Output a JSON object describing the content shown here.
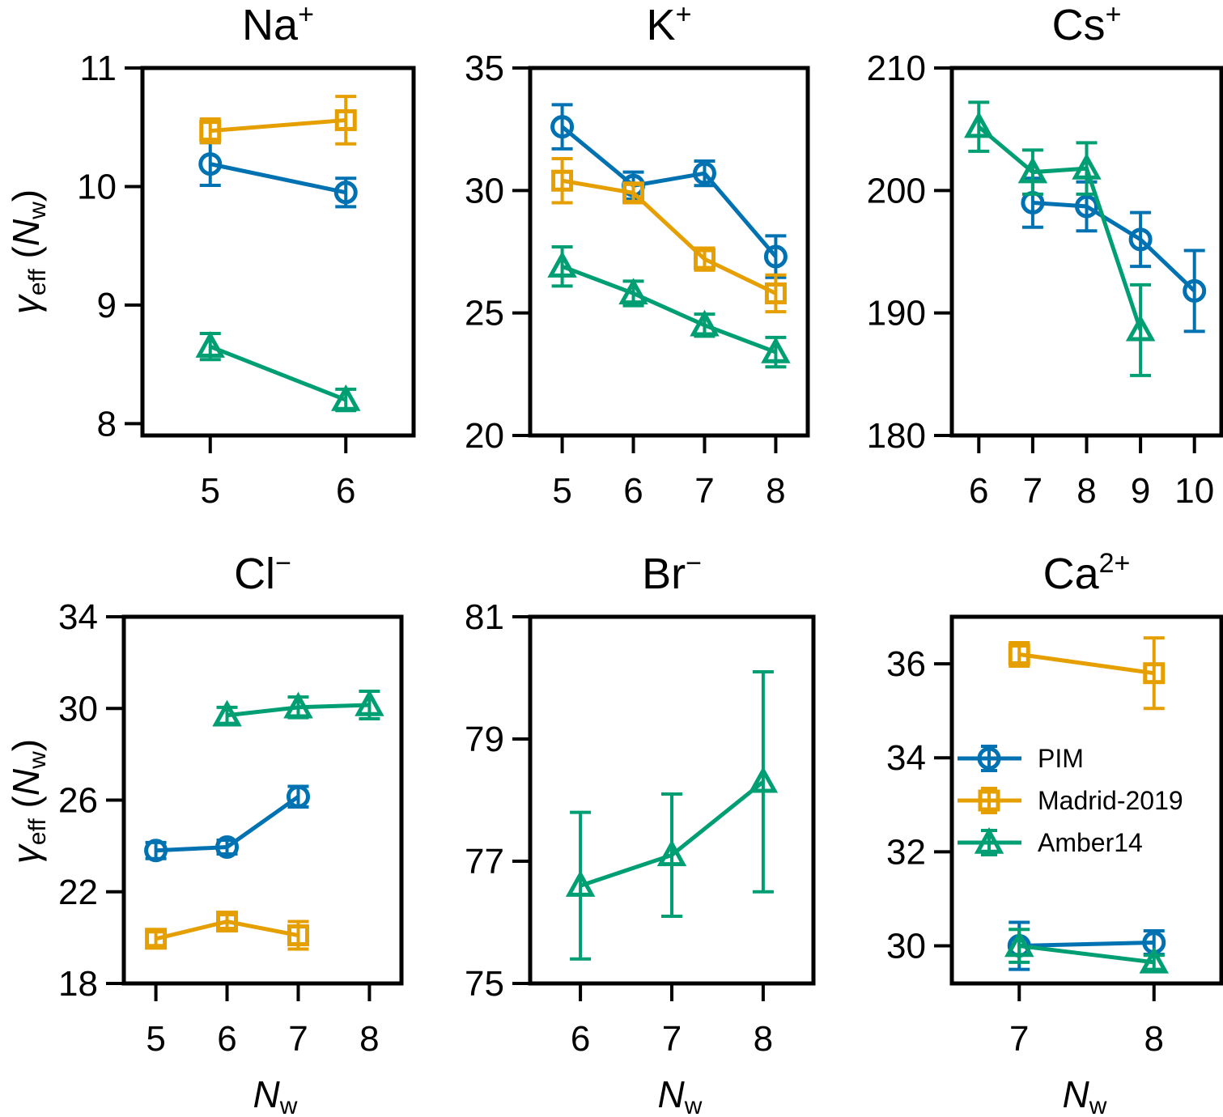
{
  "figure": {
    "y_label": {
      "symbol": "γ",
      "sub": "eff",
      "open": " (",
      "var": "N",
      "var_sub": "w",
      "close": ")"
    },
    "x_label": {
      "var": "N",
      "var_sub": "w"
    }
  },
  "legend": [
    {
      "name": "PIM",
      "marker": "circle",
      "color": "#0072B2"
    },
    {
      "name": "Madrid-2019",
      "marker": "square",
      "color": "#E69F00"
    },
    {
      "name": "Amber14",
      "marker": "triangle",
      "color": "#009E73"
    }
  ],
  "chart_data": [
    {
      "type": "line",
      "title": {
        "base": "Na",
        "sup": "+"
      },
      "xlabel": "",
      "ylabel": "γeff (Nw)",
      "xlim": [
        4.5,
        6.5
      ],
      "ylim": [
        7.9,
        11
      ],
      "xticks": [
        5,
        6
      ],
      "yticks": [
        8,
        9,
        10,
        11
      ],
      "series": [
        {
          "name": "PIM",
          "marker": "circle",
          "color": "#0072B2",
          "points": [
            {
              "x": 5,
              "y": 10.19,
              "err": 0.18
            },
            {
              "x": 6,
              "y": 9.95,
              "err": 0.12
            }
          ]
        },
        {
          "name": "Madrid-2019",
          "marker": "square",
          "color": "#E69F00",
          "points": [
            {
              "x": 5,
              "y": 10.47,
              "err": 0.1
            },
            {
              "x": 6,
              "y": 10.56,
              "err": 0.2
            }
          ]
        },
        {
          "name": "Amber14",
          "marker": "triangle",
          "color": "#009E73",
          "points": [
            {
              "x": 5,
              "y": 8.65,
              "err": 0.11
            },
            {
              "x": 6,
              "y": 8.2,
              "err": 0.09
            }
          ]
        }
      ]
    },
    {
      "type": "line",
      "title": {
        "base": "K",
        "sup": "+"
      },
      "xlabel": "",
      "ylabel": "",
      "xlim": [
        4.55,
        8.45
      ],
      "ylim": [
        20,
        35
      ],
      "xticks": [
        5,
        6,
        7,
        8
      ],
      "yticks": [
        20,
        25,
        30,
        35
      ],
      "series": [
        {
          "name": "PIM",
          "marker": "circle",
          "color": "#0072B2",
          "points": [
            {
              "x": 5,
              "y": 32.6,
              "err": 0.9
            },
            {
              "x": 6,
              "y": 30.2,
              "err": 0.55
            },
            {
              "x": 7,
              "y": 30.7,
              "err": 0.5
            },
            {
              "x": 8,
              "y": 27.3,
              "err": 0.85
            }
          ]
        },
        {
          "name": "Madrid-2019",
          "marker": "square",
          "color": "#E69F00",
          "points": [
            {
              "x": 5,
              "y": 30.4,
              "err": 0.9
            },
            {
              "x": 6,
              "y": 29.9,
              "err": 0.4
            },
            {
              "x": 7,
              "y": 27.2,
              "err": 0.45
            },
            {
              "x": 8,
              "y": 25.8,
              "err": 0.75
            }
          ]
        },
        {
          "name": "Amber14",
          "marker": "triangle",
          "color": "#009E73",
          "points": [
            {
              "x": 5,
              "y": 26.9,
              "err": 0.8
            },
            {
              "x": 6,
              "y": 25.8,
              "err": 0.5
            },
            {
              "x": 7,
              "y": 24.5,
              "err": 0.45
            },
            {
              "x": 8,
              "y": 23.4,
              "err": 0.6
            }
          ]
        }
      ]
    },
    {
      "type": "line",
      "title": {
        "base": "Cs",
        "sup": "+"
      },
      "xlabel": "",
      "ylabel": "",
      "xlim": [
        5.5,
        10.5
      ],
      "ylim": [
        180,
        210
      ],
      "xticks": [
        6,
        7,
        8,
        9,
        10
      ],
      "yticks": [
        180,
        190,
        200,
        210
      ],
      "series": [
        {
          "name": "PIM",
          "marker": "circle",
          "color": "#0072B2",
          "points": [
            {
              "x": 7,
              "y": 199,
              "err": 2
            },
            {
              "x": 8,
              "y": 198.7,
              "err": 2
            },
            {
              "x": 9,
              "y": 196,
              "err": 2.2
            },
            {
              "x": 10,
              "y": 191.8,
              "err": 3.3
            }
          ]
        },
        {
          "name": "Amber14",
          "marker": "triangle",
          "color": "#009E73",
          "points": [
            {
              "x": 6,
              "y": 205.2,
              "err": 2
            },
            {
              "x": 7,
              "y": 201.5,
              "err": 1.8
            },
            {
              "x": 8,
              "y": 201.8,
              "err": 2.1
            },
            {
              "x": 9,
              "y": 188.6,
              "err": 3.7
            }
          ]
        }
      ]
    },
    {
      "type": "line",
      "title": {
        "base": "Cl",
        "sup": "−"
      },
      "xlabel": "Nw",
      "ylabel": "γeff (Nw)",
      "xlim": [
        4.55,
        8.45
      ],
      "ylim": [
        18,
        34
      ],
      "xticks": [
        5,
        6,
        7,
        8
      ],
      "yticks": [
        18,
        22,
        26,
        30,
        34
      ],
      "series": [
        {
          "name": "PIM",
          "marker": "circle",
          "color": "#0072B2",
          "points": [
            {
              "x": 5,
              "y": 23.8,
              "err": 0.35
            },
            {
              "x": 6,
              "y": 23.95,
              "err": 0.3
            },
            {
              "x": 7,
              "y": 26.15,
              "err": 0.45
            }
          ]
        },
        {
          "name": "Madrid-2019",
          "marker": "square",
          "color": "#E69F00",
          "points": [
            {
              "x": 5,
              "y": 19.95,
              "err": 0.3
            },
            {
              "x": 6,
              "y": 20.7,
              "err": 0.3
            },
            {
              "x": 7,
              "y": 20.1,
              "err": 0.6
            }
          ]
        },
        {
          "name": "Amber14",
          "marker": "triangle",
          "color": "#009E73",
          "points": [
            {
              "x": 6,
              "y": 29.7,
              "err": 0.35
            },
            {
              "x": 7,
              "y": 30.05,
              "err": 0.45
            },
            {
              "x": 8,
              "y": 30.15,
              "err": 0.6
            }
          ]
        }
      ]
    },
    {
      "type": "line",
      "title": {
        "base": "Br",
        "sup": "−"
      },
      "xlabel": "Nw",
      "ylabel": "",
      "xlim": [
        5.45,
        8.55
      ],
      "ylim": [
        75,
        81
      ],
      "xticks": [
        6,
        7,
        8
      ],
      "yticks": [
        75,
        77,
        79,
        81
      ],
      "series": [
        {
          "name": "Amber14",
          "marker": "triangle",
          "color": "#009E73",
          "points": [
            {
              "x": 6,
              "y": 76.6,
              "err": 1.2
            },
            {
              "x": 7,
              "y": 77.1,
              "err": 1.0
            },
            {
              "x": 8,
              "y": 78.3,
              "err": 1.8
            }
          ]
        }
      ]
    },
    {
      "type": "line",
      "title": {
        "base": "Ca",
        "sup": "2+"
      },
      "xlabel": "Nw",
      "ylabel": "",
      "xlim": [
        6.5,
        8.5
      ],
      "ylim": [
        29.2,
        37
      ],
      "xticks": [
        7,
        8
      ],
      "yticks": [
        30,
        32,
        34,
        36
      ],
      "series": [
        {
          "name": "PIM",
          "marker": "circle",
          "color": "#0072B2",
          "points": [
            {
              "x": 7,
              "y": 30.0,
              "err": 0.5
            },
            {
              "x": 8,
              "y": 30.07,
              "err": 0.25
            }
          ]
        },
        {
          "name": "Madrid-2019",
          "marker": "square",
          "color": "#E69F00",
          "points": [
            {
              "x": 7,
              "y": 36.2,
              "err": 0.25
            },
            {
              "x": 8,
              "y": 35.8,
              "err": 0.75
            }
          ]
        },
        {
          "name": "Amber14",
          "marker": "triangle",
          "color": "#009E73",
          "points": [
            {
              "x": 7,
              "y": 30.0,
              "err": 0.35
            },
            {
              "x": 8,
              "y": 29.65,
              "err": 0.15
            }
          ]
        }
      ],
      "legend_position": "center-left"
    }
  ]
}
